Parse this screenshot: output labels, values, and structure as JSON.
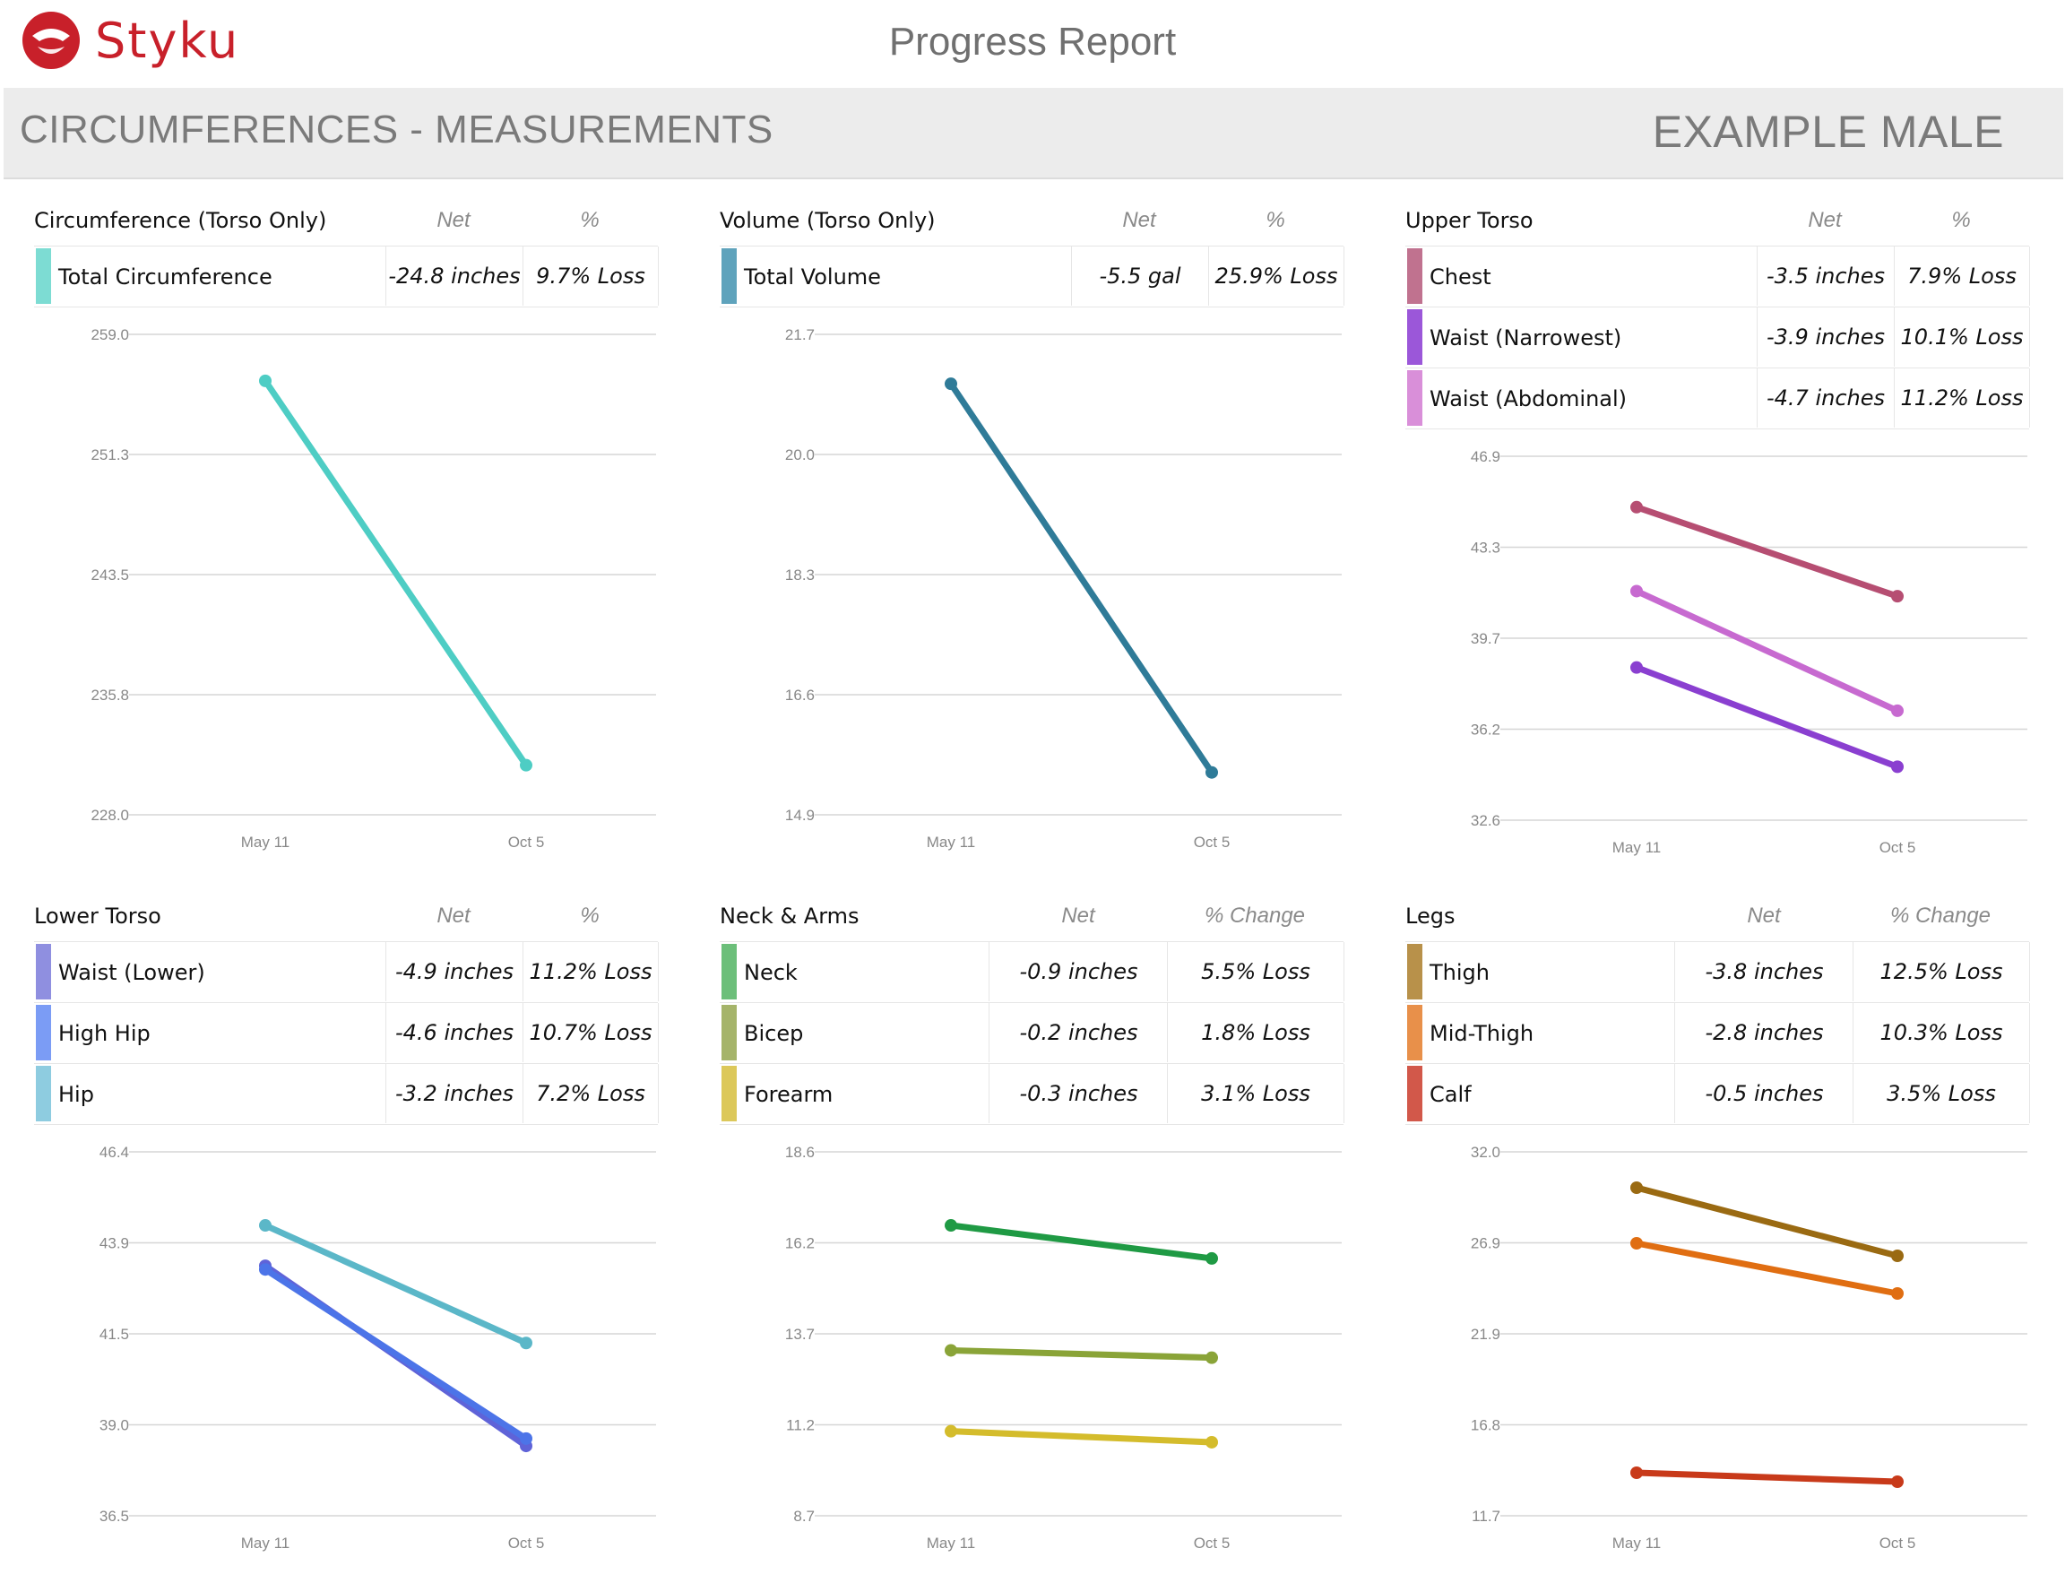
{
  "header": {
    "brand": "Styku",
    "report_title": "Progress Report",
    "section_title": "CIRCUMFERENCES - MEASUREMENTS",
    "profile_name": "EXAMPLE MALE"
  },
  "colors": {
    "brand": "#c8202a",
    "band": "#ececec"
  },
  "chart_data": [
    {
      "type": "line",
      "title": "Circumference (Torso Only)",
      "net_header": "Net",
      "pct_header": "%",
      "x": [
        "May 11",
        "Oct 5"
      ],
      "ylim": [
        228.0,
        259.0
      ],
      "yticks": [
        "259.0",
        "251.3",
        "243.5",
        "235.8",
        "228.0"
      ],
      "grid": true,
      "series": [
        {
          "name": "Total Circumference",
          "net": "-24.8 inches",
          "pct": "9.7% Loss",
          "swatch": "#7ddcd3",
          "color": "#4ecdc4",
          "values": [
            256.0,
            231.2
          ]
        }
      ]
    },
    {
      "type": "line",
      "title": "Volume (Torso Only)",
      "net_header": "Net",
      "pct_header": "%",
      "x": [
        "May 11",
        "Oct 5"
      ],
      "ylim": [
        14.9,
        21.7
      ],
      "yticks": [
        "21.7",
        "20.0",
        "18.3",
        "16.6",
        "14.9"
      ],
      "grid": true,
      "series": [
        {
          "name": "Total Volume",
          "net": "-5.5 gal",
          "pct": "25.9% Loss",
          "swatch": "#5fa3bc",
          "color": "#2f7b98",
          "values": [
            21.0,
            15.5
          ]
        }
      ]
    },
    {
      "type": "line",
      "title": "Upper Torso",
      "net_header": "Net",
      "pct_header": "%",
      "x": [
        "May 11",
        "Oct 5"
      ],
      "ylim": [
        32.6,
        46.9
      ],
      "yticks": [
        "46.9",
        "43.3",
        "39.7",
        "36.2",
        "32.6"
      ],
      "grid": true,
      "series": [
        {
          "name": "Chest",
          "net": "-3.5 inches",
          "pct": "7.9% Loss",
          "swatch": "#c0728f",
          "color": "#b64e72",
          "values": [
            44.9,
            41.4
          ]
        },
        {
          "name": "Waist (Narrowest)",
          "net": "-3.9 inches",
          "pct": "10.1% Loss",
          "swatch": "#9b57d9",
          "color": "#8a3fd0",
          "values": [
            38.6,
            34.7
          ]
        },
        {
          "name": "Waist (Abdominal)",
          "net": "-4.7 inches",
          "pct": "11.2% Loss",
          "swatch": "#d98fd9",
          "color": "#c76ad0",
          "values": [
            41.6,
            36.9
          ]
        }
      ]
    },
    {
      "type": "line",
      "title": "Lower Torso",
      "net_header": "Net",
      "pct_header": "%",
      "x": [
        "May 11",
        "Oct 5"
      ],
      "ylim": [
        36.5,
        46.4
      ],
      "yticks": [
        "46.4",
        "43.9",
        "41.5",
        "39.0",
        "36.5"
      ],
      "grid": true,
      "series": [
        {
          "name": "Waist (Lower)",
          "net": "-4.9 inches",
          "pct": "11.2% Loss",
          "swatch": "#8f8fe0",
          "color": "#5f63d8",
          "values": [
            43.3,
            38.4
          ]
        },
        {
          "name": "High Hip",
          "net": "-4.6 inches",
          "pct": "10.7% Loss",
          "swatch": "#7b9cf5",
          "color": "#4c74e8",
          "values": [
            43.2,
            38.6
          ]
        },
        {
          "name": "Hip",
          "net": "-3.2 inches",
          "pct": "7.2% Loss",
          "swatch": "#8ecce0",
          "color": "#5bb7c8",
          "values": [
            44.4,
            41.2
          ]
        }
      ]
    },
    {
      "type": "line",
      "title": "Neck & Arms",
      "net_header": "Net",
      "pct_header": "% Change",
      "x": [
        "May 11",
        "Oct 5"
      ],
      "ylim": [
        8.7,
        18.6
      ],
      "yticks": [
        "18.6",
        "16.2",
        "13.7",
        "11.2",
        "8.7"
      ],
      "grid": true,
      "series": [
        {
          "name": "Neck",
          "net": "-0.9 inches",
          "pct": "5.5% Loss",
          "swatch": "#6cbf7a",
          "color": "#1f9a44",
          "values": [
            16.6,
            15.7
          ]
        },
        {
          "name": "Bicep",
          "net": "-0.2 inches",
          "pct": "1.8% Loss",
          "swatch": "#a5b46a",
          "color": "#8aa438",
          "values": [
            13.2,
            13.0
          ]
        },
        {
          "name": "Forearm",
          "net": "-0.3 inches",
          "pct": "3.1% Loss",
          "swatch": "#dcc85a",
          "color": "#d4bc2c",
          "values": [
            11.0,
            10.7
          ]
        }
      ]
    },
    {
      "type": "line",
      "title": "Legs",
      "net_header": "Net",
      "pct_header": "% Change",
      "x": [
        "May 11",
        "Oct 5"
      ],
      "ylim": [
        11.7,
        32.0
      ],
      "yticks": [
        "32.0",
        "26.9",
        "21.9",
        "16.8",
        "11.7"
      ],
      "grid": true,
      "series": [
        {
          "name": "Thigh",
          "net": "-3.8 inches",
          "pct": "12.5% Loss",
          "swatch": "#b8914a",
          "color": "#9a6a12",
          "values": [
            30.0,
            26.2
          ]
        },
        {
          "name": "Mid-Thigh",
          "net": "-2.8 inches",
          "pct": "10.3% Loss",
          "swatch": "#e8904a",
          "color": "#e06e12",
          "values": [
            26.9,
            24.1
          ]
        },
        {
          "name": "Calf",
          "net": "-0.5 inches",
          "pct": "3.5% Loss",
          "swatch": "#d2584a",
          "color": "#c83a1a",
          "values": [
            14.1,
            13.6
          ]
        }
      ]
    }
  ]
}
